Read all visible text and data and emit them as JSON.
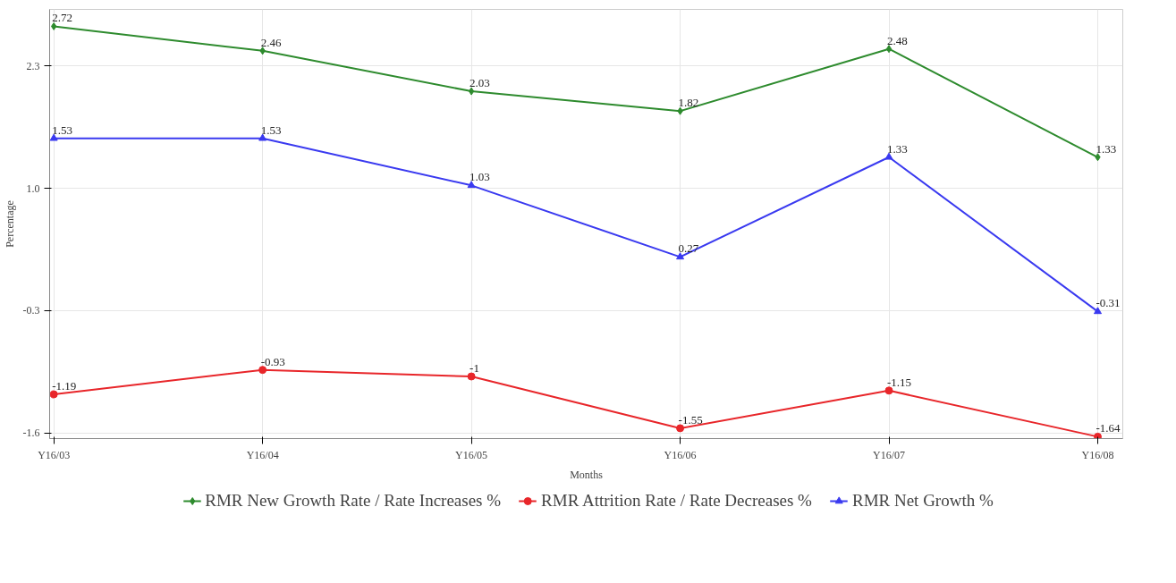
{
  "chart_data": {
    "type": "line",
    "xlabel": "Months",
    "ylabel": "Percentage",
    "categories": [
      "Y16/03",
      "Y16/04",
      "Y16/05",
      "Y16/06",
      "Y16/07",
      "Y16/08"
    ],
    "series": [
      {
        "name": "RMR New Growth Rate / Rate Increases %",
        "color": "#2e8b2e",
        "marker": "diamond",
        "values": [
          2.72,
          2.46,
          2.03,
          1.82,
          2.48,
          1.33
        ]
      },
      {
        "name": "RMR Attrition Rate / Rate Decreases %",
        "color": "#e8262a",
        "marker": "circle",
        "values": [
          -1.19,
          -0.93,
          -1,
          -1.55,
          -1.15,
          -1.64
        ]
      },
      {
        "name": "RMR Net Growth %",
        "color": "#3a3af0",
        "marker": "triangle",
        "values": [
          1.53,
          1.53,
          1.03,
          0.27,
          1.33,
          -0.31
        ]
      }
    ],
    "ylim": [
      -1.66,
      2.9
    ],
    "yticks": [
      -1.6,
      -0.3,
      {
        "value": 1.0,
        "label": "1.0"
      },
      2.3
    ],
    "grid": true,
    "legend": "bottom",
    "data_labels": true,
    "line_style": "solid"
  }
}
